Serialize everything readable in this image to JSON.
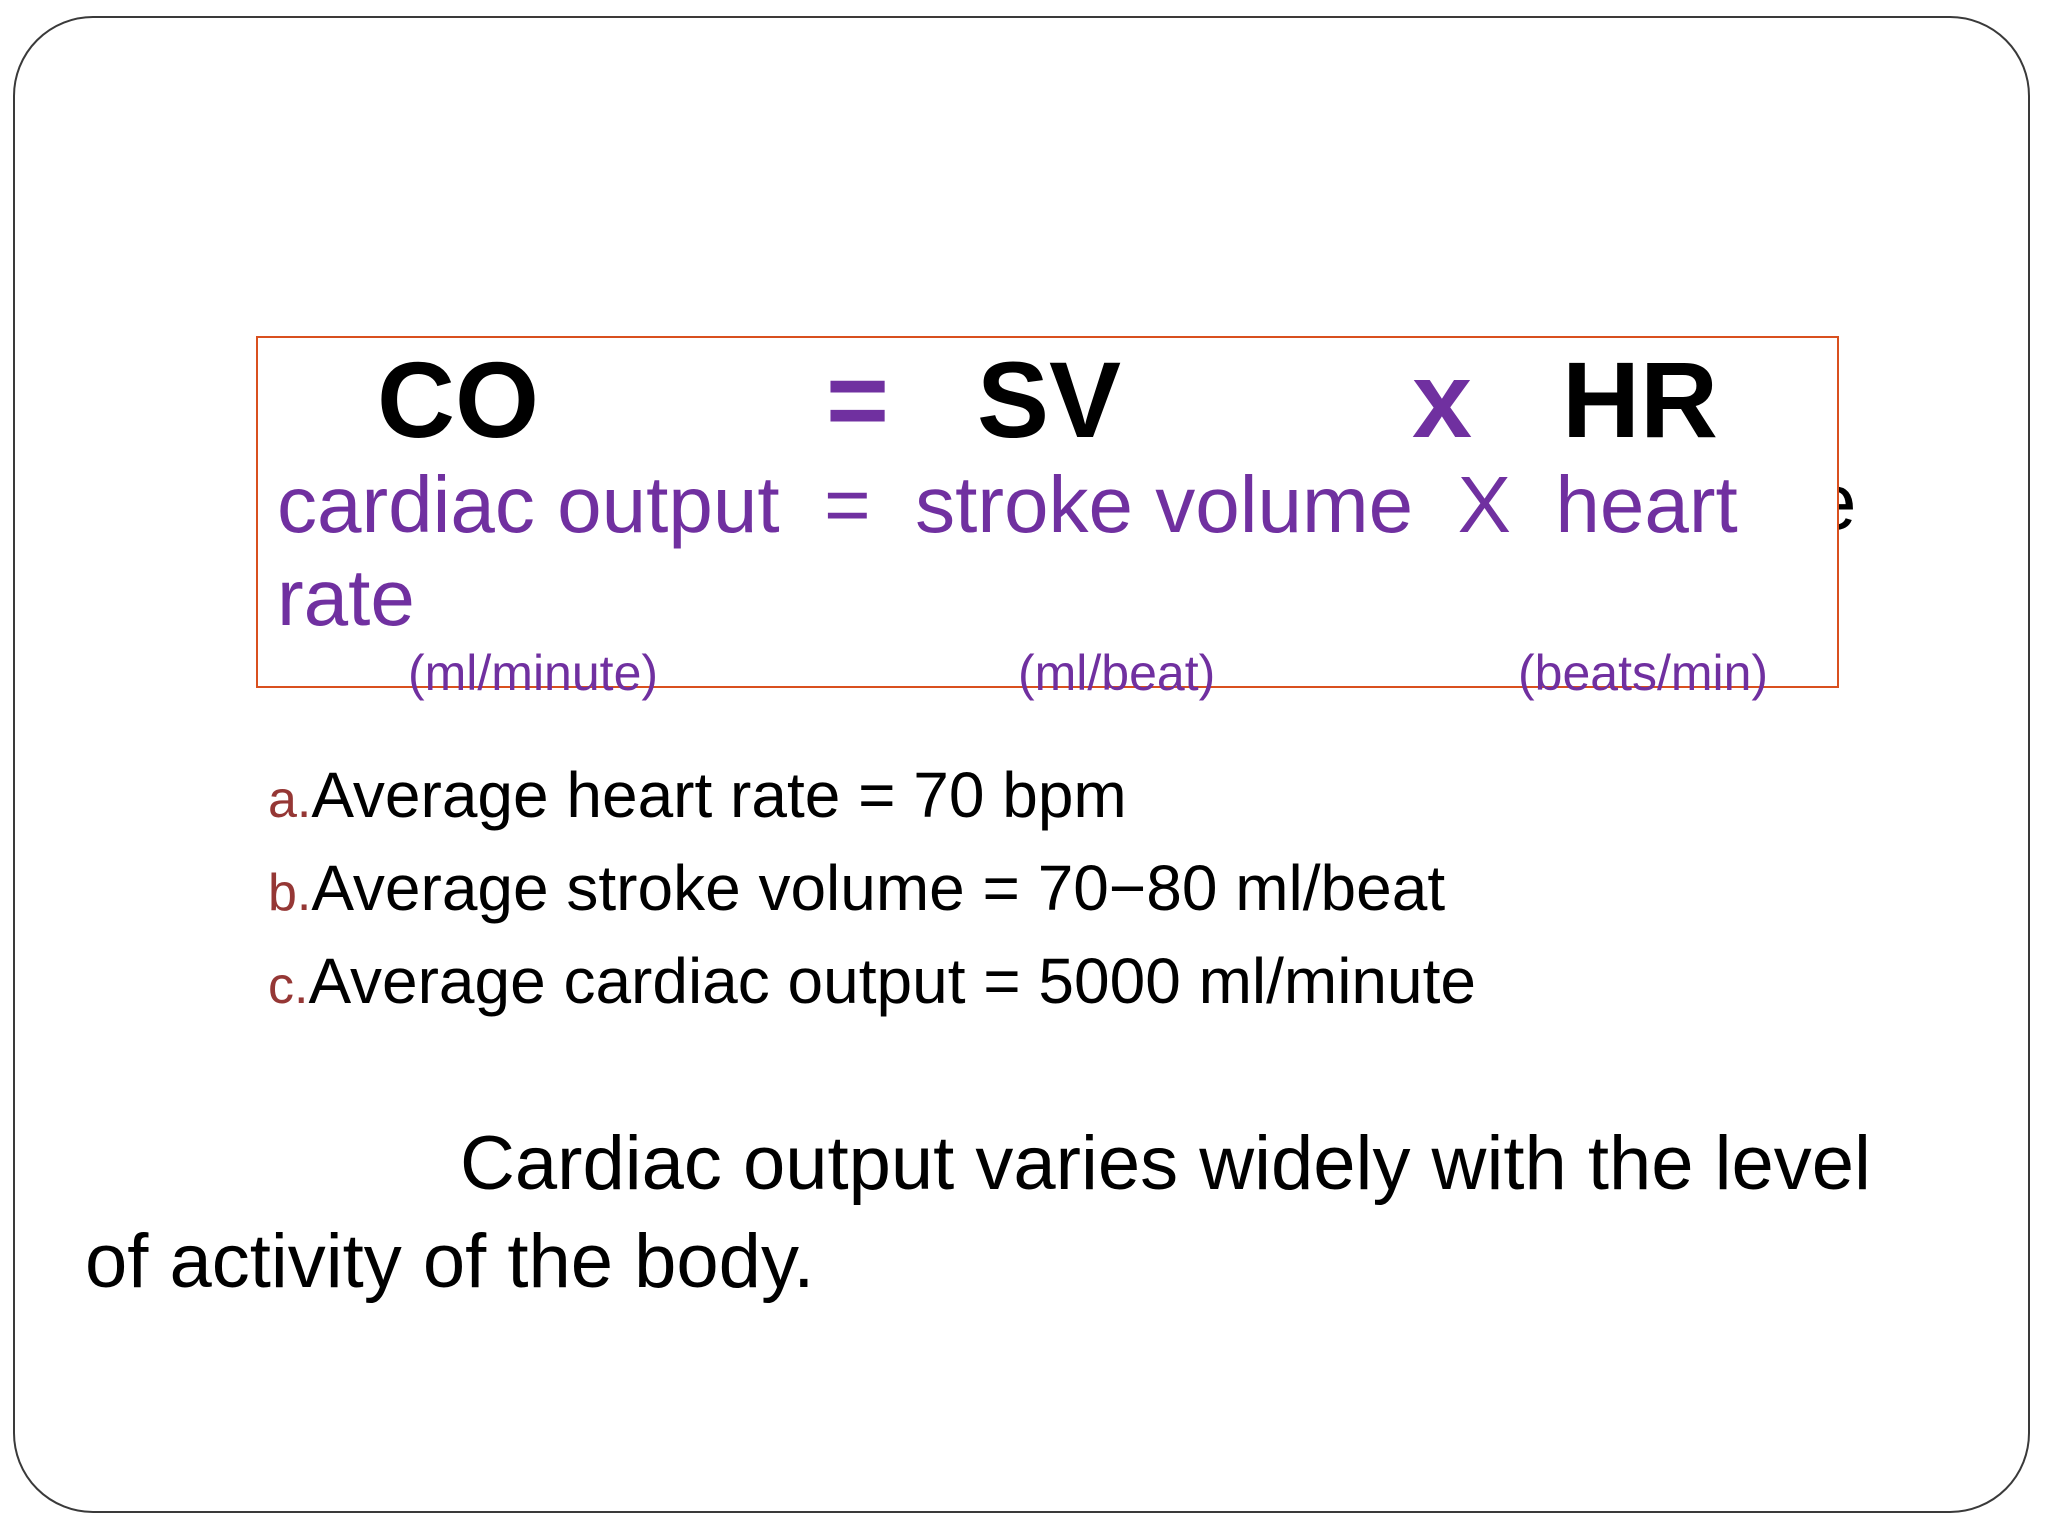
{
  "slide": {
    "hidden_text_fragment": "e",
    "formula": {
      "co": "CO",
      "equals": "=",
      "sv": "SV",
      "times": "x",
      "hr": "HR",
      "expanded_line1": "cardiac output  =  stroke volume  X  heart",
      "expanded_line2": "rate",
      "units": [
        "(ml/minute)",
        "(ml/beat)",
        "(beats/min)"
      ]
    },
    "list": [
      {
        "marker": "a.",
        "text": "Average heart rate = 70 bpm"
      },
      {
        "marker": "b.",
        "text": "Average stroke volume = 70−80 ml/beat"
      },
      {
        "marker": "c.",
        "text": "Average cardiac output = 5000 ml/minute"
      }
    ],
    "paragraph_line1": "Cardiac output varies widely with the level",
    "paragraph_line2": "of activity of the body.",
    "colors": {
      "accent": "#7030A0",
      "box_border": "#D9501F",
      "list_marker": "#953735"
    }
  }
}
